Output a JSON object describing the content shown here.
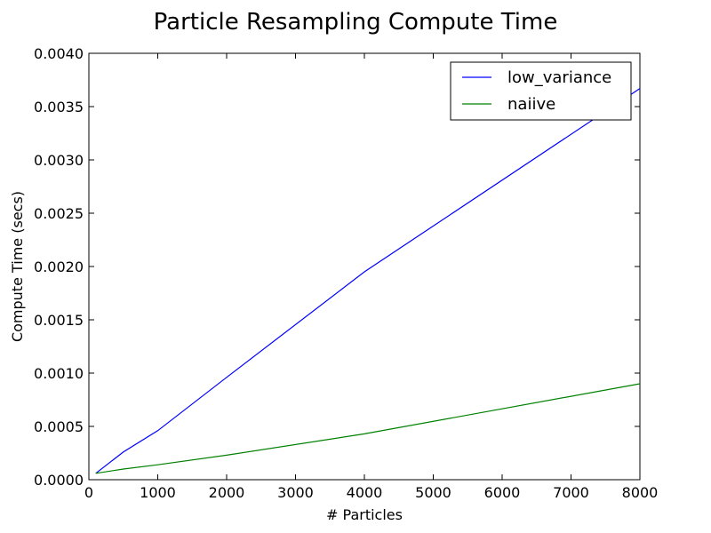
{
  "chart_data": {
    "type": "line",
    "title": "Particle Resampling Compute Time",
    "xlabel": "# Particles",
    "ylabel": "Compute Time (secs)",
    "xlim": [
      0,
      8000
    ],
    "ylim": [
      0,
      0.004
    ],
    "xticks": [
      0,
      1000,
      2000,
      3000,
      4000,
      5000,
      6000,
      7000,
      8000
    ],
    "yticks": [
      0,
      0.0005,
      0.001,
      0.0015,
      0.002,
      0.0025,
      0.003,
      0.0035,
      0.004
    ],
    "xtick_labels": [
      "0",
      "1000",
      "2000",
      "3000",
      "4000",
      "5000",
      "6000",
      "7000",
      "8000"
    ],
    "ytick_labels": [
      "0.0000",
      "0.0005",
      "0.0010",
      "0.0015",
      "0.0020",
      "0.0025",
      "0.0030",
      "0.0035",
      "0.0040"
    ],
    "grid": false,
    "legend_position": "top-right",
    "series": [
      {
        "name": "low_variance",
        "color": "#0000ff",
        "x": [
          100,
          500,
          1000,
          2000,
          4000,
          8000
        ],
        "y": [
          6e-05,
          0.00026,
          0.00046,
          0.00096,
          0.00195,
          0.00367
        ]
      },
      {
        "name": "naiive",
        "color": "#008000",
        "x": [
          100,
          500,
          1000,
          2000,
          4000,
          8000
        ],
        "y": [
          6e-05,
          0.0001,
          0.00014,
          0.00023,
          0.00043,
          0.0009
        ]
      }
    ]
  }
}
